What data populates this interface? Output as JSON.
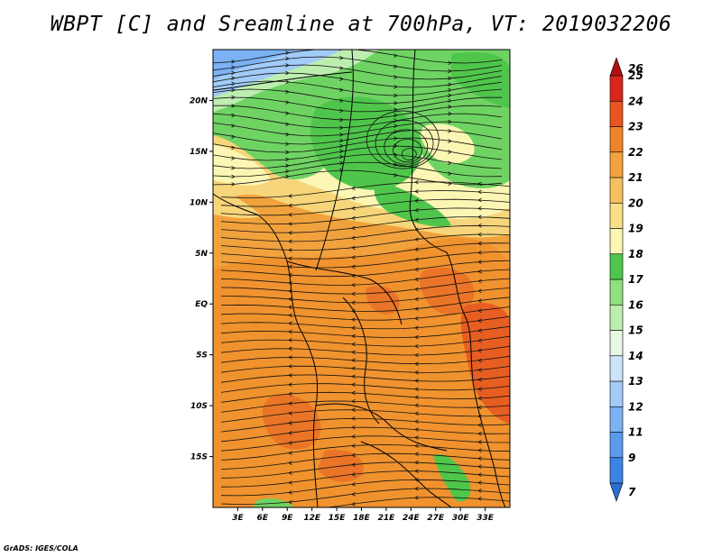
{
  "title": "WBPT [C] and Sreamline at 700hPa, VT: 2019032206",
  "credit": "GrADS: IGES/COLA",
  "map": {
    "lon_range": [
      0,
      36
    ],
    "lat_range": [
      -20,
      25
    ],
    "lon_ticks": [
      "3E",
      "6E",
      "9E",
      "12E",
      "15E",
      "18E",
      "21E",
      "24E",
      "27E",
      "30E",
      "33E"
    ],
    "lon_tick_values": [
      3,
      6,
      9,
      12,
      15,
      18,
      21,
      24,
      27,
      30,
      33
    ],
    "lat_ticks": [
      "20N",
      "15N",
      "10N",
      "5N",
      "EQ",
      "5S",
      "10S",
      "15S"
    ],
    "lat_tick_values": [
      20,
      15,
      10,
      5,
      0,
      -5,
      -10,
      -15
    ]
  },
  "colorbar": {
    "labels": [
      "7",
      "9",
      "11",
      "12",
      "13",
      "14",
      "15",
      "16",
      "17",
      "18",
      "19",
      "20",
      "21",
      "22",
      "23",
      "24",
      "25",
      "26"
    ],
    "colors": [
      "#2a6fd6",
      "#3c84e4",
      "#5a9bee",
      "#7cb2f3",
      "#a2cbf7",
      "#cce4fb",
      "#e9f8e4",
      "#bdeeb0",
      "#8fe07f",
      "#4fc64b",
      "#fbf6b3",
      "#f8e088",
      "#f5c160",
      "#f2a33e",
      "#ef8329",
      "#e8551e",
      "#d8261a",
      "#b00f10"
    ]
  }
}
